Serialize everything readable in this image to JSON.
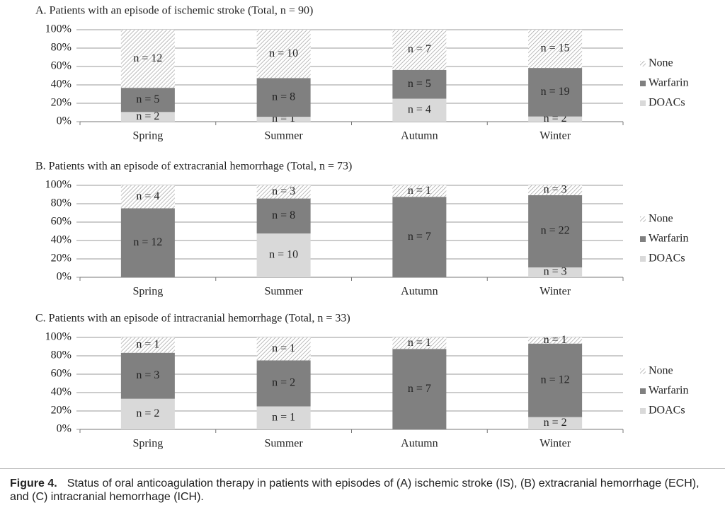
{
  "chart_data": [
    {
      "type": "stacked_bar",
      "title": "A. Patients with an episode of ischemic stroke (Total, n = 90)",
      "categories": [
        "Spring",
        "Summer",
        "Autumn",
        "Winter"
      ],
      "ylim": [
        0,
        100
      ],
      "yticks": [
        {
          "value": 0,
          "label": "0%"
        },
        {
          "value": 20,
          "label": "20%"
        },
        {
          "value": 40,
          "label": "40%"
        },
        {
          "value": 60,
          "label": "60%"
        },
        {
          "value": 80,
          "label": "80%"
        },
        {
          "value": 100,
          "label": "100%"
        }
      ],
      "grid": true,
      "legend": "right",
      "series": [
        {
          "name": "DOACs",
          "color": "#d9d9d9",
          "values": [
            10.5,
            5.3,
            25,
            5.6
          ],
          "count_labels": [
            "n = 2",
            "n = 1",
            "n = 4",
            "n = 2"
          ]
        },
        {
          "name": "Warfarin",
          "color": "#808080",
          "values": [
            26.3,
            42.1,
            31.3,
            52.8
          ],
          "count_labels": [
            "n = 5",
            "n = 8",
            "n = 5",
            "n = 19"
          ]
        },
        {
          "name": "None",
          "color": "#a6a6a6",
          "hatch": true,
          "values": [
            63.2,
            52.6,
            43.7,
            41.6
          ],
          "count_labels": [
            "n = 12",
            "n = 10",
            "n = 7",
            "n = 15"
          ]
        }
      ]
    },
    {
      "type": "stacked_bar",
      "title": "B. Patients with an episode of extracranial hemorrhage (Total, n = 73)",
      "categories": [
        "Spring",
        "Summer",
        "Autumn",
        "Winter"
      ],
      "ylim": [
        0,
        100
      ],
      "yticks": [
        {
          "value": 0,
          "label": "0%"
        },
        {
          "value": 20,
          "label": "20%"
        },
        {
          "value": 40,
          "label": "40%"
        },
        {
          "value": 60,
          "label": "60%"
        },
        {
          "value": 80,
          "label": "80%"
        },
        {
          "value": 100,
          "label": "100%"
        }
      ],
      "grid": true,
      "legend": "right",
      "series": [
        {
          "name": "DOACs",
          "color": "#d9d9d9",
          "values": [
            0,
            47.6,
            0,
            10.7
          ],
          "count_labels": [
            null,
            "n = 10",
            null,
            "n = 3"
          ]
        },
        {
          "name": "Warfarin",
          "color": "#808080",
          "values": [
            75,
            38.1,
            87.5,
            78.6
          ],
          "count_labels": [
            "n = 12",
            "n = 8",
            "n = 7",
            "n = 22"
          ]
        },
        {
          "name": "None",
          "color": "#a6a6a6",
          "hatch": true,
          "values": [
            25,
            14.3,
            12.5,
            10.7
          ],
          "count_labels": [
            "n = 4",
            "n = 3",
            "n = 1",
            "n = 3"
          ]
        }
      ]
    },
    {
      "type": "stacked_bar",
      "title": "C. Patients with an episode of intracranial hemorrhage (Total, n = 33)",
      "categories": [
        "Spring",
        "Summer",
        "Autumn",
        "Winter"
      ],
      "ylim": [
        0,
        100
      ],
      "yticks": [
        {
          "value": 0,
          "label": "0%"
        },
        {
          "value": 20,
          "label": "20%"
        },
        {
          "value": 40,
          "label": "40%"
        },
        {
          "value": 60,
          "label": "60%"
        },
        {
          "value": 80,
          "label": "80%"
        },
        {
          "value": 100,
          "label": "100%"
        }
      ],
      "grid": true,
      "legend": "right",
      "series": [
        {
          "name": "DOACs",
          "color": "#d9d9d9",
          "values": [
            33.3,
            25,
            0,
            13.3
          ],
          "count_labels": [
            "n = 2",
            "n = 1",
            null,
            "n = 2"
          ]
        },
        {
          "name": "Warfarin",
          "color": "#808080",
          "values": [
            50,
            50,
            87.5,
            80
          ],
          "count_labels": [
            "n = 3",
            "n = 2",
            "n = 7",
            "n = 12"
          ]
        },
        {
          "name": "None",
          "color": "#a6a6a6",
          "hatch": true,
          "values": [
            16.7,
            25,
            12.5,
            6.7
          ],
          "count_labels": [
            "n = 1",
            "n = 1",
            "n = 1",
            "n = 1"
          ]
        }
      ]
    }
  ],
  "caption": {
    "label": "Figure 4.",
    "text": "Status of oral anticoagulation therapy in patients with episodes of (A) ischemic stroke (IS), (B) extracranial hemorrhage (ECH), and (C) intracranial hemorrhage (ICH)."
  }
}
